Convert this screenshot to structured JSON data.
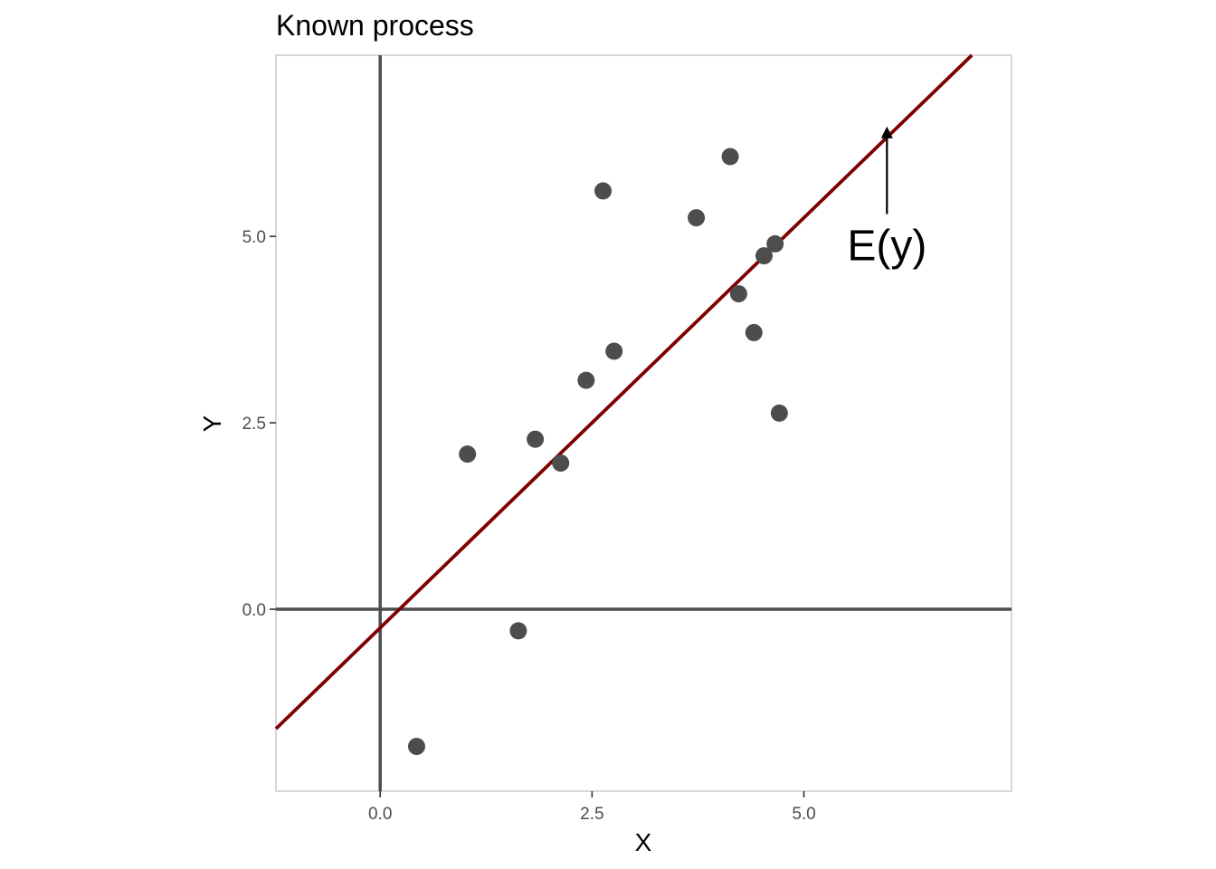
{
  "chart_data": {
    "type": "scatter",
    "title": "Known process",
    "xlabel": "X",
    "ylabel": "Y",
    "xlim": [
      -1.23,
      7.45
    ],
    "ylim": [
      -2.44,
      7.43
    ],
    "xticks": [
      0.0,
      2.5,
      5.0
    ],
    "xtick_labels": [
      "0.0",
      "2.5",
      "5.0"
    ],
    "yticks": [
      0.0,
      2.5,
      5.0
    ],
    "ytick_labels": [
      "0.0",
      "2.5",
      "5.0"
    ],
    "grid": false,
    "legend": "none",
    "points": [
      {
        "x": 0.43,
        "y": -1.84
      },
      {
        "x": 1.03,
        "y": 2.08
      },
      {
        "x": 1.63,
        "y": -0.29
      },
      {
        "x": 1.83,
        "y": 2.28
      },
      {
        "x": 2.13,
        "y": 1.96
      },
      {
        "x": 2.43,
        "y": 3.07
      },
      {
        "x": 2.63,
        "y": 5.61
      },
      {
        "x": 2.76,
        "y": 3.46
      },
      {
        "x": 3.73,
        "y": 5.25
      },
      {
        "x": 4.13,
        "y": 6.07
      },
      {
        "x": 4.23,
        "y": 4.23
      },
      {
        "x": 4.41,
        "y": 3.71
      },
      {
        "x": 4.53,
        "y": 4.74
      },
      {
        "x": 4.66,
        "y": 4.9
      },
      {
        "x": 4.71,
        "y": 2.63
      }
    ],
    "reference_lines": {
      "hline_y": 0,
      "vline_x": 0
    },
    "expected_line": {
      "intercept": -0.25,
      "slope": 1.1
    },
    "annotation": {
      "text": "E(y)",
      "arrow_from": {
        "x": 5.98,
        "y": 5.3
      },
      "arrow_to": {
        "x": 5.98,
        "y": 6.45
      }
    },
    "colors": {
      "points": "#4d4d4d",
      "reference_lines": "#4d4d4d",
      "expected_line": "#7f0000",
      "panel_border": "#bdbdbd",
      "tick_marks": "#333333"
    }
  }
}
